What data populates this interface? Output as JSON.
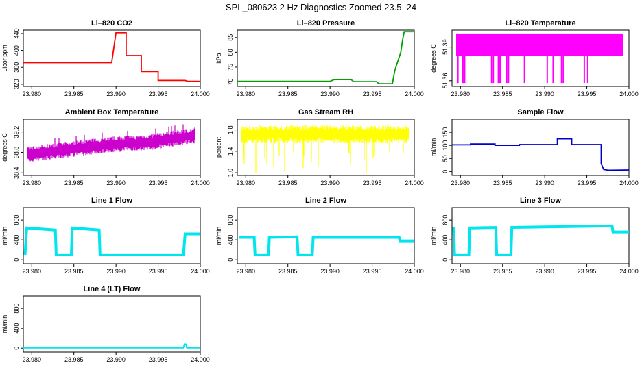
{
  "title": "SPL_080623  2 Hz Diagnostics Zoomed 23.5–24",
  "chart_data": [
    {
      "id": "co2",
      "type": "line",
      "title": "Li–820 CO2",
      "ylabel": "Licor ppm",
      "color": "#ff0000",
      "xlim": [
        23.979,
        24.0
      ],
      "ylim": [
        315,
        448
      ],
      "xticks": [
        23.98,
        23.985,
        23.99,
        23.995,
        24.0
      ],
      "xticklabels": [
        "23.980",
        "23.985",
        "23.990",
        "23.995",
        "24.000"
      ],
      "yticks": [
        320,
        360,
        400,
        440
      ],
      "yticklabels": [
        "320",
        "360",
        "400",
        "440"
      ],
      "x": [
        23.979,
        23.9895,
        23.9895,
        23.99,
        23.99,
        23.9912,
        23.9912,
        23.993,
        23.993,
        23.995,
        23.995,
        23.9982,
        23.9985,
        24.0
      ],
      "y": [
        371,
        371,
        373,
        442,
        442,
        442,
        388,
        388,
        350,
        350,
        329,
        329,
        327,
        327
      ]
    },
    {
      "id": "pressure",
      "type": "line",
      "title": "Li–820 Pressure",
      "ylabel": "kPa",
      "color": "#00a000",
      "xlim": [
        23.979,
        24.0
      ],
      "ylim": [
        68.5,
        87.5
      ],
      "xticks": [
        23.98,
        23.985,
        23.99,
        23.995,
        24.0
      ],
      "xticklabels": [
        "23.980",
        "23.985",
        "23.990",
        "23.995",
        "24.000"
      ],
      "yticks": [
        70,
        75,
        80,
        85
      ],
      "yticklabels": [
        "70",
        "75",
        "80",
        "85"
      ],
      "x": [
        23.979,
        23.99,
        23.9905,
        23.9925,
        23.9928,
        23.9955,
        23.9958,
        23.9974,
        23.9977,
        23.9984,
        23.9986,
        23.9988,
        23.9989,
        24.0
      ],
      "y": [
        70.2,
        70.2,
        70.8,
        70.8,
        70.1,
        70.1,
        69.4,
        69.4,
        74,
        80,
        84,
        87,
        87,
        87
      ]
    },
    {
      "id": "li820_temp",
      "type": "band",
      "title": "Li–820 Temperature",
      "ylabel": "degrees C",
      "color": "#ff00ff",
      "xlim": [
        23.979,
        24.0
      ],
      "ylim": [
        51.355,
        51.405
      ],
      "xticks": [
        23.98,
        23.985,
        23.99,
        23.995,
        24.0
      ],
      "xticklabels": [
        "23.980",
        "23.985",
        "23.990",
        "23.995",
        "24.000"
      ],
      "yticks": [
        51.36,
        51.39
      ],
      "yticklabels": [
        "51.36",
        "51.39"
      ],
      "band": [
        51.382,
        51.402
      ],
      "spikes": [
        23.9797,
        23.9803,
        23.9805,
        23.9837,
        23.9839,
        23.9845,
        23.9847,
        23.9855,
        23.9857,
        23.9876,
        23.9903,
        23.991,
        23.992,
        23.9922,
        23.9947,
        23.9951
      ],
      "spike_low": 51.358
    },
    {
      "id": "box_temp",
      "type": "line",
      "title": "Ambient Box Temperature",
      "ylabel": "degrees C",
      "color": "#cc00cc",
      "xlim": [
        23.979,
        24.0
      ],
      "ylim": [
        38.35,
        39.45
      ],
      "xticks": [
        23.98,
        23.985,
        23.99,
        23.995,
        24.0
      ],
      "xticklabels": [
        "23.980",
        "23.985",
        "23.990",
        "23.995",
        "24.000"
      ],
      "yticks": [
        38.4,
        38.8,
        39.2
      ],
      "yticklabels": [
        "38.4",
        "38.8",
        "39.2"
      ],
      "x": [
        23.979,
        23.984,
        23.989,
        23.994,
        23.998,
        24.0
      ],
      "y": [
        38.75,
        38.85,
        38.95,
        39.0,
        39.1,
        39.15
      ]
    },
    {
      "id": "rh",
      "type": "line",
      "title": "Gas Stream RH",
      "ylabel": "percent",
      "color": "#ffff00",
      "xlim": [
        23.979,
        24.0
      ],
      "ylim": [
        0.95,
        2.0
      ],
      "xticks": [
        23.98,
        23.985,
        23.99,
        23.995,
        24.0
      ],
      "xticklabels": [
        "23.980",
        "23.985",
        "23.990",
        "23.995",
        "24.000"
      ],
      "yticks": [
        1.0,
        1.4,
        1.8
      ],
      "yticklabels": [
        "1.0",
        "1.4",
        "1.8"
      ],
      "x": [
        23.979,
        24.0
      ],
      "y": [
        1.72,
        1.72
      ]
    },
    {
      "id": "sample_flow",
      "type": "line",
      "title": "Sample Flow",
      "ylabel": "ml/min",
      "color": "#0000cc",
      "xlim": [
        23.979,
        24.0
      ],
      "ylim": [
        -15,
        200
      ],
      "xticks": [
        23.98,
        23.985,
        23.99,
        23.995,
        24.0
      ],
      "xticklabels": [
        "23.980",
        "23.985",
        "23.990",
        "23.995",
        "24.000"
      ],
      "yticks": [
        0,
        50,
        100,
        150
      ],
      "yticklabels": [
        "0",
        "50",
        "100",
        "150"
      ],
      "x": [
        23.979,
        23.9812,
        23.9812,
        23.9841,
        23.9841,
        23.987,
        23.987,
        23.9915,
        23.9915,
        23.9932,
        23.9932,
        23.9967,
        23.9967,
        23.997,
        23.9975,
        24.0
      ],
      "y": [
        102,
        102,
        105,
        105,
        100,
        100,
        103,
        103,
        125,
        125,
        103,
        103,
        30,
        8,
        5,
        6
      ]
    },
    {
      "id": "line1",
      "type": "line",
      "title": "Line 1 Flow",
      "ylabel": "ml/min",
      "color": "#00e5ee",
      "xlim": [
        23.979,
        24.0
      ],
      "ylim": [
        -80,
        1050
      ],
      "xticks": [
        23.98,
        23.985,
        23.99,
        23.995,
        24.0
      ],
      "xticklabels": [
        "23.980",
        "23.985",
        "23.990",
        "23.995",
        "24.000"
      ],
      "yticks": [
        0,
        400,
        800
      ],
      "yticklabels": [
        "0",
        "400",
        "800"
      ],
      "x": [
        23.9792,
        23.9794,
        23.9828,
        23.9829,
        23.9847,
        23.9848,
        23.988,
        23.9881,
        23.998,
        23.9982,
        24.0
      ],
      "y": [
        100,
        640,
        600,
        100,
        100,
        640,
        600,
        100,
        100,
        520,
        520
      ]
    },
    {
      "id": "line2",
      "type": "line",
      "title": "Line 2 Flow",
      "ylabel": "ml/min",
      "color": "#00e5ee",
      "xlim": [
        23.979,
        24.0
      ],
      "ylim": [
        -80,
        1050
      ],
      "xticks": [
        23.98,
        23.985,
        23.99,
        23.995,
        24.0
      ],
      "xticklabels": [
        "23.980",
        "23.985",
        "23.990",
        "23.995",
        "24.000"
      ],
      "yticks": [
        0,
        400,
        800
      ],
      "yticklabels": [
        "0",
        "400",
        "800"
      ],
      "x": [
        23.9792,
        23.981,
        23.9811,
        23.9827,
        23.9828,
        23.9861,
        23.9862,
        23.9879,
        23.988,
        23.9982,
        23.9983,
        24.0
      ],
      "y": [
        450,
        450,
        100,
        100,
        450,
        460,
        100,
        100,
        450,
        450,
        380,
        380
      ]
    },
    {
      "id": "line3",
      "type": "line",
      "title": "Line 3 Flow",
      "ylabel": "ml/min",
      "color": "#00e5ee",
      "xlim": [
        23.979,
        24.0
      ],
      "ylim": [
        -80,
        1050
      ],
      "xticks": [
        23.98,
        23.985,
        23.99,
        23.995,
        24.0
      ],
      "xticklabels": [
        "23.980",
        "23.985",
        "23.990",
        "23.995",
        "24.000"
      ],
      "yticks": [
        0,
        400,
        800
      ],
      "yticklabels": [
        "0",
        "400",
        "800"
      ],
      "x": [
        23.9792,
        23.9793,
        23.9795,
        23.981,
        23.9811,
        23.9842,
        23.9843,
        23.986,
        23.9861,
        23.998,
        23.9981,
        24.0
      ],
      "y": [
        650,
        100,
        100,
        100,
        640,
        650,
        100,
        100,
        650,
        680,
        560,
        560
      ]
    },
    {
      "id": "line4",
      "type": "line",
      "title": "Line 4 (LT) Flow",
      "ylabel": "ml/min",
      "color": "#00e5ee",
      "xlim": [
        23.979,
        24.0
      ],
      "ylim": [
        -80,
        1050
      ],
      "xticks": [
        23.98,
        23.985,
        23.99,
        23.995,
        24.0
      ],
      "xticklabels": [
        "23.980",
        "23.985",
        "23.990",
        "23.995",
        "24.000"
      ],
      "yticks": [
        0,
        400,
        800
      ],
      "yticklabels": [
        "0",
        "400",
        "800"
      ],
      "x": [
        23.979,
        23.998,
        23.9981,
        23.9983,
        23.9984,
        24.0
      ],
      "y": [
        5,
        5,
        80,
        80,
        5,
        5
      ]
    }
  ]
}
